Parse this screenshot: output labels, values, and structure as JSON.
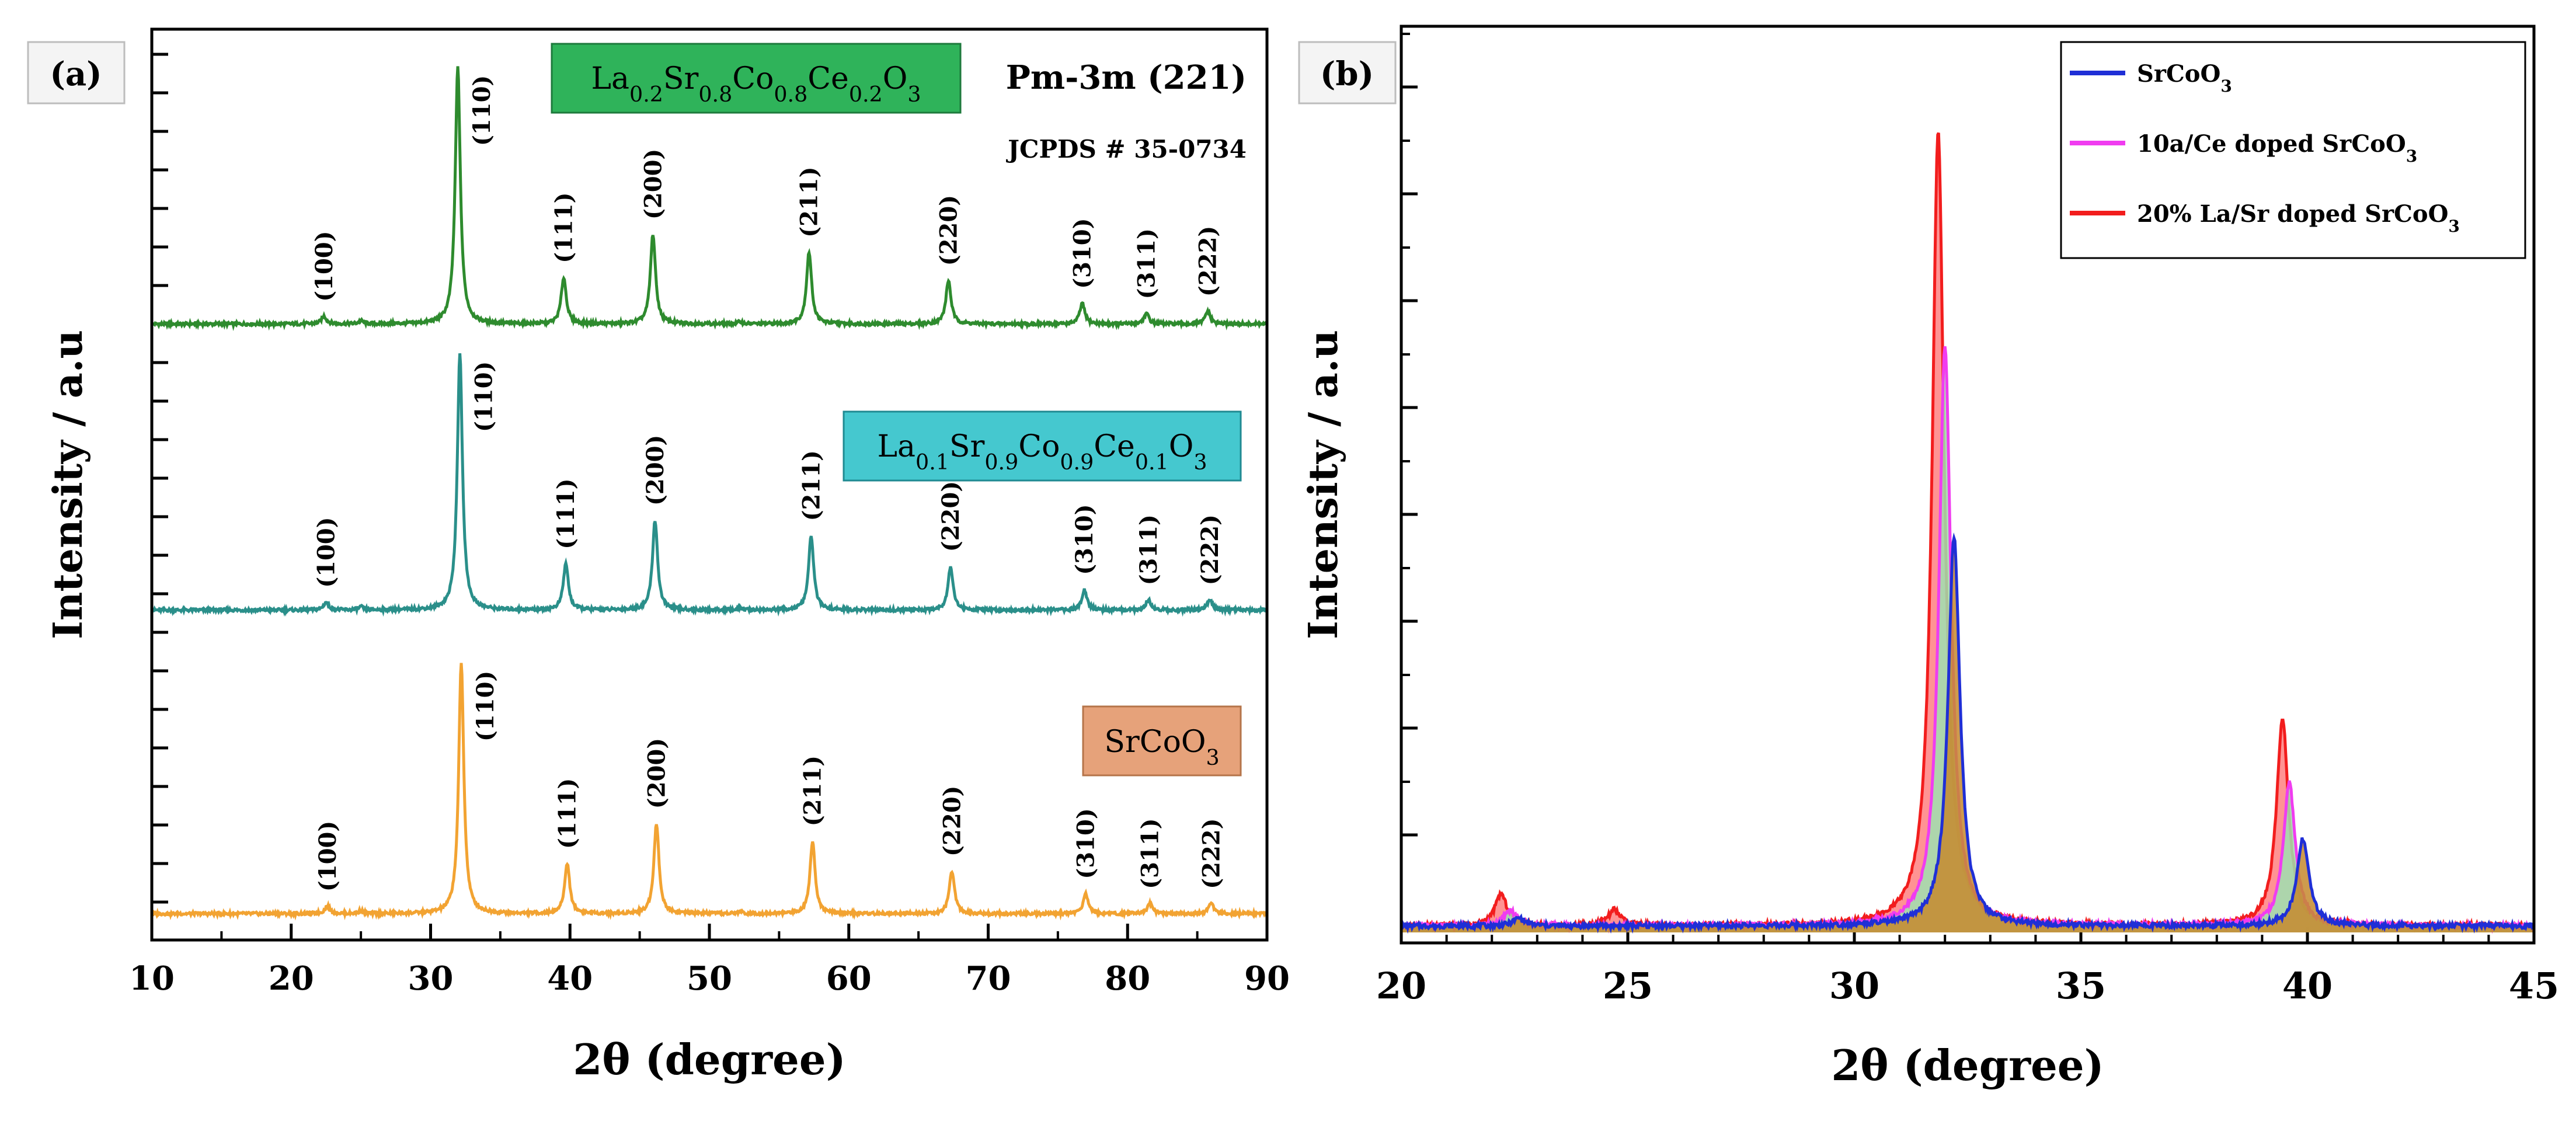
{
  "chart_data": [
    {
      "id": "a",
      "type": "line",
      "panel_label": "(a)",
      "xlabel": "2θ (degree)",
      "ylabel": "Intensity / a.u",
      "xlim": [
        10,
        90
      ],
      "x_ticks": [
        10,
        20,
        30,
        40,
        50,
        60,
        70,
        80,
        90
      ],
      "y_tick_labels": "none",
      "annotations": {
        "space_group": "Pm-3m (221)",
        "jcpds": "JCPDS # 35-0734"
      },
      "peaks": [
        {
          "hkl": "(100)",
          "two_theta": 22.6
        },
        {
          "hkl": "(110)",
          "two_theta": 32.2
        },
        {
          "hkl": "(111)",
          "two_theta": 39.8
        },
        {
          "hkl": "(200)",
          "two_theta": 46.2
        },
        {
          "hkl": "(211)",
          "two_theta": 57.4
        },
        {
          "hkl": "(220)",
          "two_theta": 67.4
        },
        {
          "hkl": "(310)",
          "two_theta": 77.0
        },
        {
          "hkl": "(311)",
          "two_theta": 81.6
        },
        {
          "hkl": "(222)",
          "two_theta": 86.0
        }
      ],
      "series": [
        {
          "name": "La0.2Sr0.8Co0.8Ce0.2O3",
          "label_parts": [
            [
              "La",
              ""
            ],
            [
              "0.2",
              "sub"
            ],
            [
              "Sr",
              ""
            ],
            [
              "0.8",
              "sub"
            ],
            [
              "Co",
              ""
            ],
            [
              "0.8",
              "sub"
            ],
            [
              "Ce",
              ""
            ],
            [
              "0.2",
              "sub"
            ],
            [
              "O",
              ""
            ],
            [
              "3",
              "sub"
            ]
          ],
          "color": "#2e8b2e",
          "badge_color": "#2fb35a",
          "peak_shift": -0.25,
          "intensities": [
            3,
            100,
            18,
            35,
            28,
            17,
            8,
            4,
            5
          ]
        },
        {
          "name": "La0.1Sr0.9Co0.9Ce0.1O3",
          "label_parts": [
            [
              "La",
              ""
            ],
            [
              "0.1",
              "sub"
            ],
            [
              "Sr",
              ""
            ],
            [
              "0.9",
              "sub"
            ],
            [
              "Co",
              ""
            ],
            [
              "0.9",
              "sub"
            ],
            [
              "Ce",
              ""
            ],
            [
              "0.1",
              "sub"
            ],
            [
              "O",
              ""
            ],
            [
              "3",
              "sub"
            ]
          ],
          "color": "#2a8f8a",
          "badge_color": "#45c8cf",
          "peak_shift": -0.1,
          "intensities": [
            3,
            100,
            18,
            35,
            29,
            17,
            8,
            4,
            4
          ]
        },
        {
          "name": "SrCoO3",
          "label_parts": [
            [
              "SrCoO",
              ""
            ],
            [
              "3",
              "sub"
            ]
          ],
          "color": "#f2a332",
          "badge_color": "#e6a27a",
          "peak_shift": 0.0,
          "intensities": [
            3,
            100,
            20,
            36,
            29,
            17,
            8,
            4,
            4
          ]
        }
      ]
    },
    {
      "id": "b",
      "type": "line",
      "panel_label": "(b)",
      "xlabel": "2θ (degree)",
      "ylabel": "Intensity / a.u",
      "xlim": [
        20,
        45
      ],
      "x_ticks": [
        20,
        25,
        30,
        35,
        40,
        45
      ],
      "y_tick_labels": "none",
      "series": [
        {
          "name": "SrCoO3",
          "legend_parts": [
            [
              "SrCoO",
              ""
            ],
            [
              "3",
              "sub"
            ]
          ],
          "color": "#1f2fd6",
          "peaks": [
            {
              "two_theta": 32.2,
              "height": 49
            },
            {
              "two_theta": 39.9,
              "height": 11
            },
            {
              "two_theta": 22.6,
              "height": 1
            }
          ]
        },
        {
          "name": "10a/Ce doped SrCoO3",
          "legend_parts": [
            [
              "10a/Ce doped SrCoO",
              ""
            ],
            [
              "3",
              "sub"
            ]
          ],
          "color": "#f03cf0",
          "peaks": [
            {
              "two_theta": 32.0,
              "height": 73
            },
            {
              "two_theta": 39.6,
              "height": 18
            },
            {
              "two_theta": 22.4,
              "height": 2
            }
          ]
        },
        {
          "name": "20% La/Sr doped SrCoO3",
          "legend_parts": [
            [
              "20% La/Sr doped SrCoO",
              ""
            ],
            [
              "3",
              "sub"
            ]
          ],
          "color": "#f21d1d",
          "peaks": [
            {
              "two_theta": 31.85,
              "height": 100
            },
            {
              "two_theta": 39.45,
              "height": 26
            },
            {
              "two_theta": 22.2,
              "height": 4
            },
            {
              "two_theta": 24.7,
              "height": 2
            }
          ]
        }
      ]
    }
  ]
}
